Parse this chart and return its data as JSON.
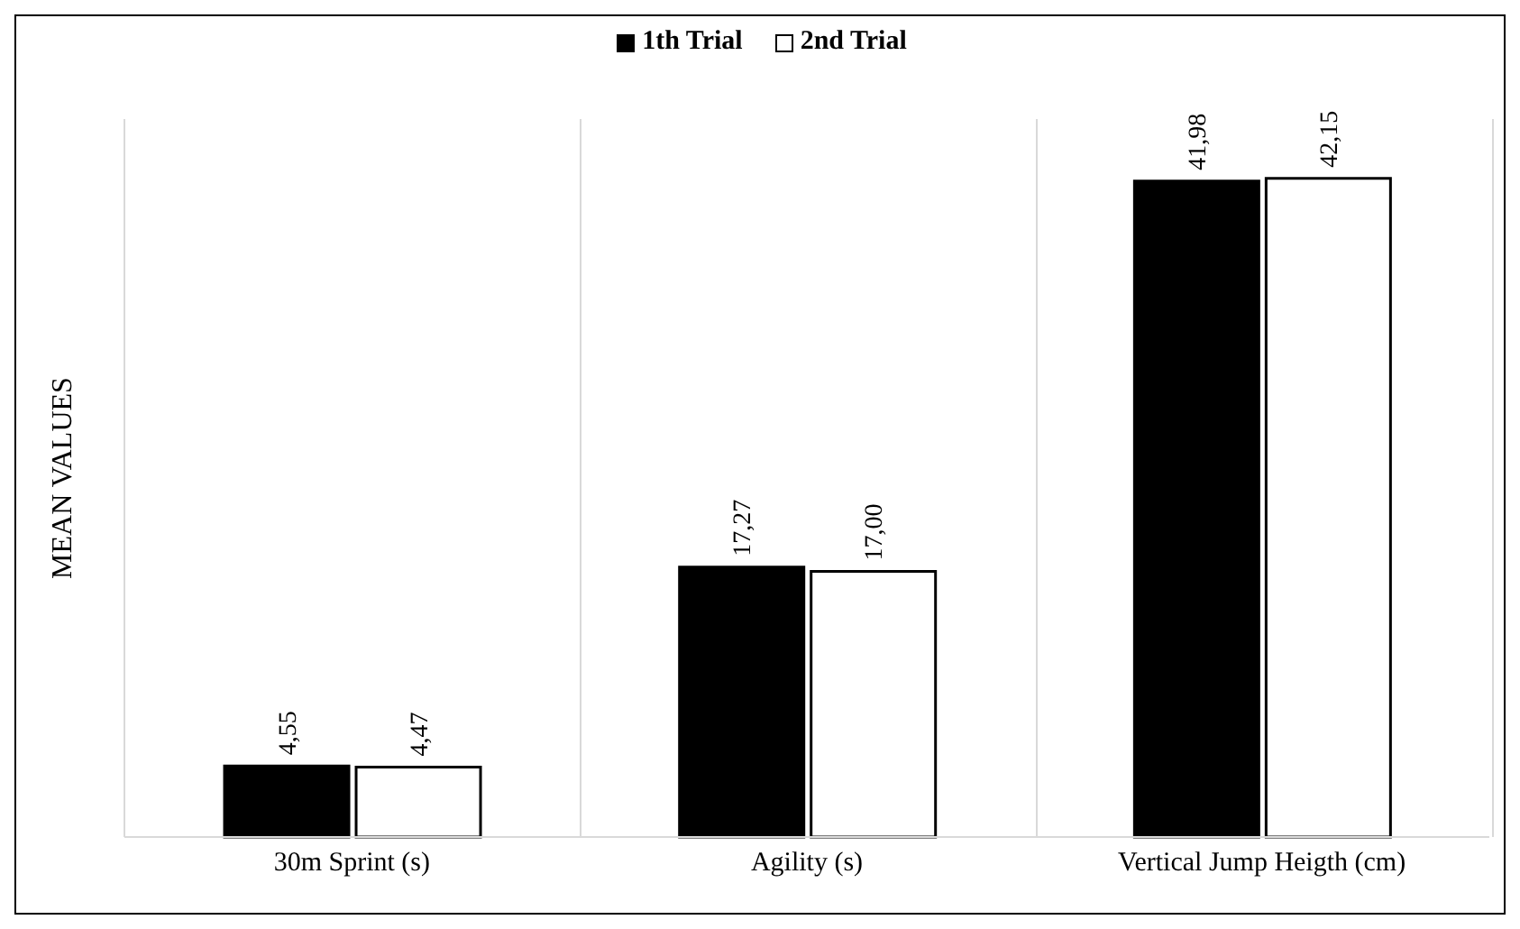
{
  "chart_data": {
    "type": "bar",
    "ylabel": "MEAN VALUES",
    "categories": [
      "30m Sprint (s)",
      "Agility (s)",
      "Vertical Jump Heigth  (cm)"
    ],
    "series": [
      {
        "name": "1th Trial",
        "color": "#000000",
        "values": [
          4.55,
          17.27,
          41.98
        ],
        "value_labels": [
          "4,55",
          "17,27",
          "41,98"
        ]
      },
      {
        "name": "2nd Trial",
        "color": "#ffffff",
        "values": [
          4.47,
          17.0,
          42.15
        ],
        "value_labels": [
          "4,47",
          "17,00",
          "42,15"
        ]
      }
    ],
    "grid": "x",
    "legend": "top"
  }
}
